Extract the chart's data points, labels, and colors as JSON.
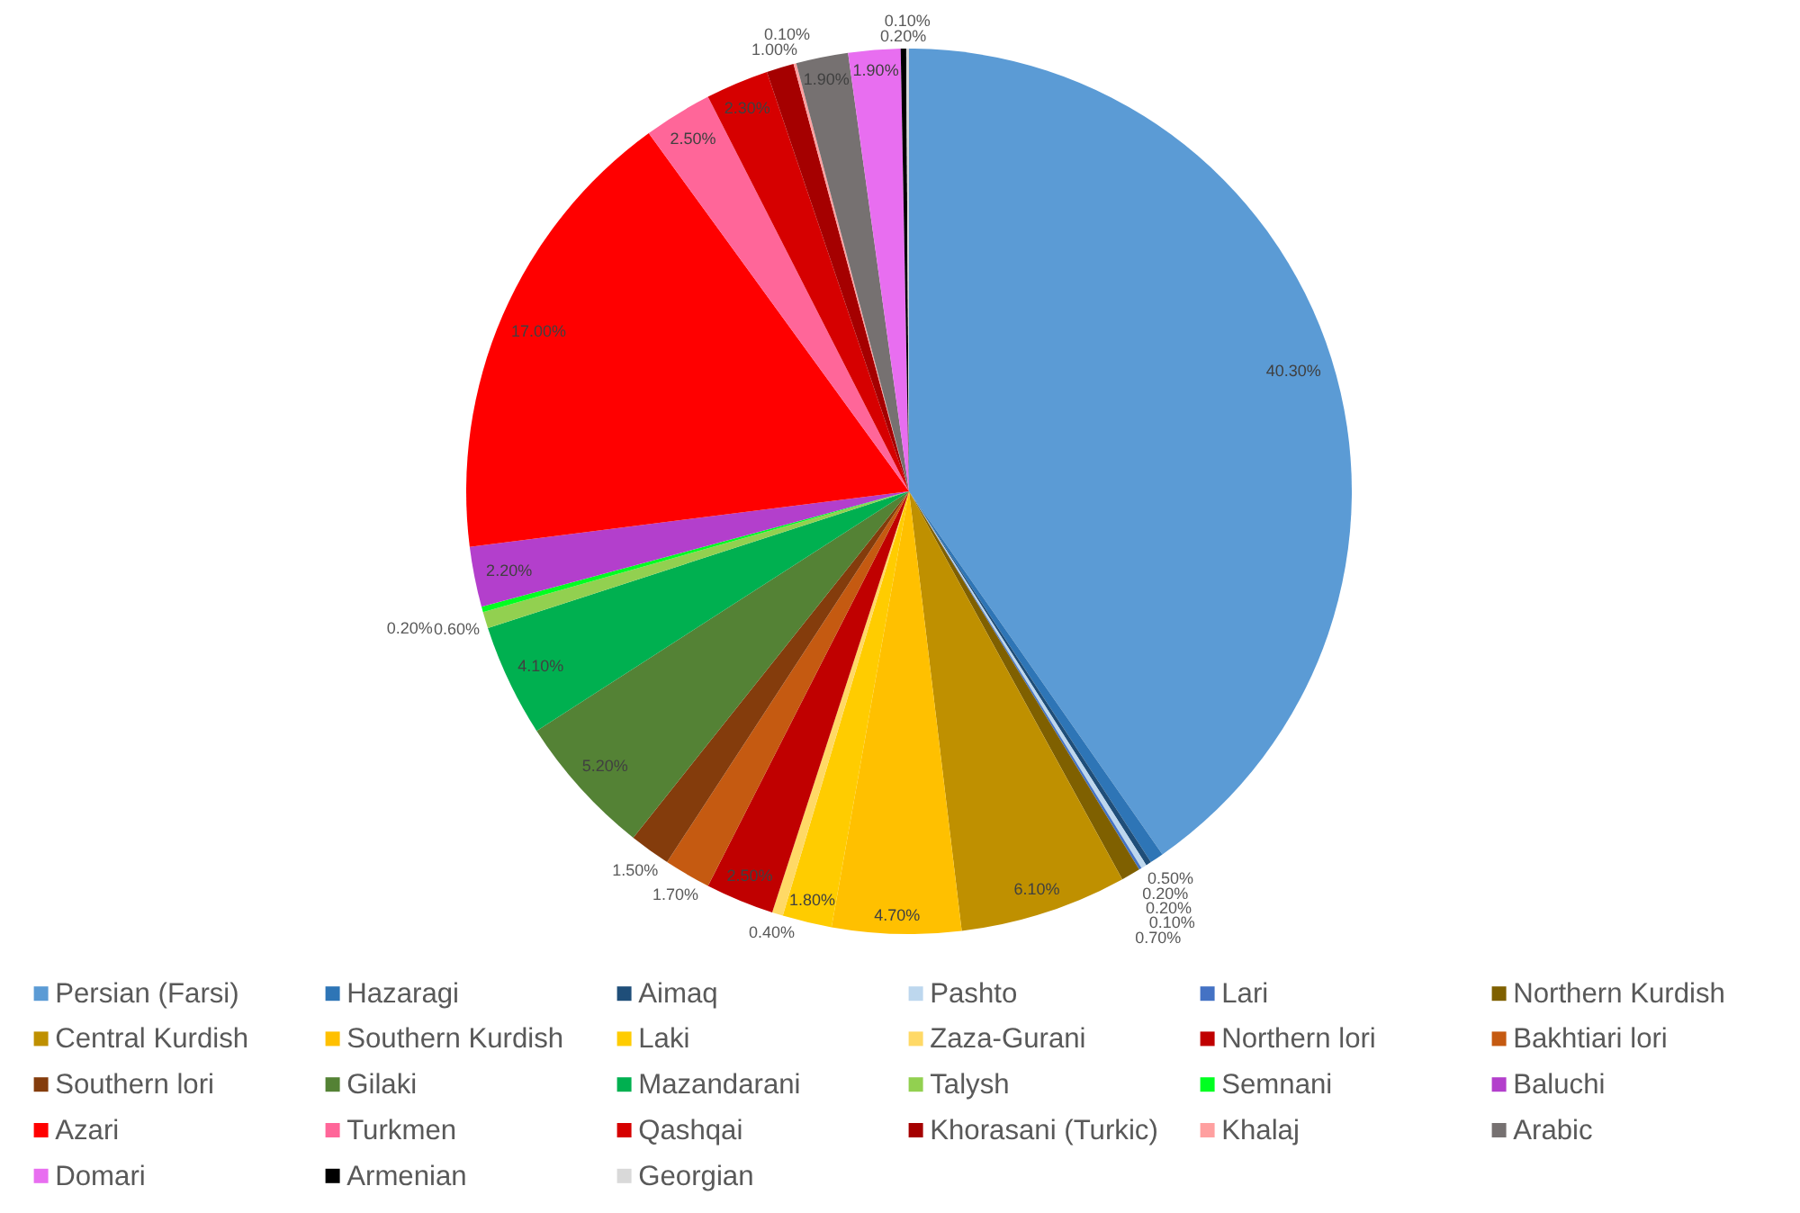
{
  "chart_data": {
    "type": "pie",
    "categories": [
      "Persian (Farsi)",
      "Hazaragi",
      "Aimaq",
      "Pashto",
      "Lari",
      "Northern Kurdish",
      "Central Kurdish",
      "Southern Kurdish",
      "Laki",
      "Zaza-Gurani",
      "Northern lori",
      "Bakhtiari lori",
      "Southern lori",
      "Gilaki",
      "Mazandarani",
      "Talysh",
      "Semnani",
      "Baluchi",
      "Azari",
      "Turkmen",
      "Qashqai",
      "Khorasani (Turkic)",
      "Khalaj",
      "Arabic",
      "Domari",
      "Armenian",
      "Georgian"
    ],
    "values": [
      40.3,
      0.5,
      0.2,
      0.2,
      0.1,
      0.7,
      6.1,
      4.7,
      1.8,
      0.4,
      2.5,
      1.7,
      1.5,
      5.2,
      4.1,
      0.6,
      0.2,
      2.2,
      17.0,
      2.5,
      2.3,
      1.0,
      0.1,
      1.9,
      1.9,
      0.2,
      0.1
    ],
    "value_labels": [
      "40.30%",
      "0.50%",
      "0.20%",
      "0.20%",
      "0.10%",
      "0.70%",
      "6.10%",
      "4.70%",
      "1.80%",
      "0.40%",
      "2.50%",
      "1.70%",
      "1.50%",
      "5.20%",
      "4.10%",
      "0.60%",
      "0.20%",
      "2.20%",
      "17.00%",
      "2.50%",
      "2.30%",
      "1.00%",
      "0.10%",
      "1.90%",
      "1.90%",
      "0.20%",
      "0.10%"
    ],
    "colors": [
      "#5b9bd5",
      "#2e75b6",
      "#1f4e79",
      "#bdd7ee",
      "#4472c4",
      "#7f6000",
      "#bf9000",
      "#ffc000",
      "#ffcc00",
      "#ffd966",
      "#c00000",
      "#c55a11",
      "#843c0c",
      "#548235",
      "#00b050",
      "#92d050",
      "#00ff21",
      "#b33fcc",
      "#ff0000",
      "#ff6699",
      "#d60000",
      "#a50000",
      "#ffa0a0",
      "#767171",
      "#e86ef0",
      "#000000",
      "#d9d9d9"
    ],
    "legend": "bottom"
  }
}
